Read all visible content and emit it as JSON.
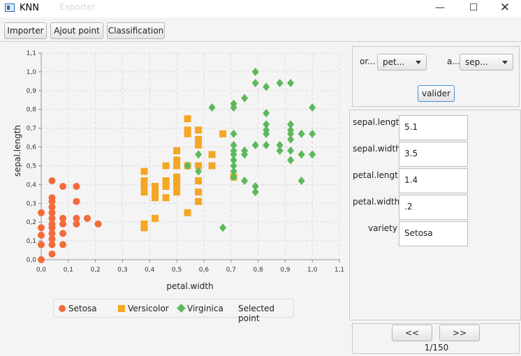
{
  "window": {
    "title": "KNN",
    "ghost_toolbar_label": "Exporter"
  },
  "toolbar": {
    "import_label": "Importer",
    "add_point_label": "Ajout point",
    "classification_label": "Classification"
  },
  "controls": {
    "x_axis_label": "or...",
    "x_axis_value": "pet...",
    "y_axis_label": "a...",
    "y_axis_value": "sep...",
    "validate_label": "valider"
  },
  "form": {
    "sepal_length": {
      "label": "sepal.length",
      "value": "5.1"
    },
    "sepal_width": {
      "label": "sepal.width",
      "value": "3.5"
    },
    "petal_length": {
      "label": "petal.length",
      "value": "1.4"
    },
    "petal_width": {
      "label": "petal.width",
      "value": ".2"
    },
    "variety": {
      "label": "variety",
      "value": "Setosa"
    }
  },
  "pager": {
    "prev_label": "<<",
    "next_label": ">>",
    "position": "1/150"
  },
  "colors": {
    "setosa": "#f26b3a",
    "versicolor": "#f5a623",
    "virginica": "#5cb85c"
  },
  "chart_data": {
    "type": "scatter",
    "xlabel": "petal.width",
    "ylabel": "sepal.length",
    "xlim": [
      0,
      1.1
    ],
    "ylim": [
      0,
      1.1
    ],
    "ticks": [
      "0,0",
      "0,1",
      "0,2",
      "0,3",
      "0,4",
      "0,5",
      "0,6",
      "0,7",
      "0,8",
      "0,9",
      "1,0",
      "1,1"
    ],
    "grid": true,
    "legend_position": "bottom",
    "legend": [
      {
        "name": "Setosa",
        "shape": "circle"
      },
      {
        "name": "Versicolor",
        "shape": "square"
      },
      {
        "name": "Virginica",
        "shape": "diamond"
      },
      {
        "name": "Selected point",
        "shape": "none"
      }
    ],
    "series": [
      {
        "name": "Setosa",
        "shape": "circle",
        "points": [
          [
            0,
            0.25
          ],
          [
            0,
            0.17
          ],
          [
            0,
            0.13
          ],
          [
            0,
            0.08
          ],
          [
            0,
            0.0
          ],
          [
            0.04,
            0.42
          ],
          [
            0.04,
            0.33
          ],
          [
            0.04,
            0.31
          ],
          [
            0.04,
            0.28
          ],
          [
            0.04,
            0.25
          ],
          [
            0.04,
            0.22
          ],
          [
            0.04,
            0.19
          ],
          [
            0.04,
            0.17
          ],
          [
            0.04,
            0.14
          ],
          [
            0.04,
            0.11
          ],
          [
            0.04,
            0.08
          ],
          [
            0.04,
            0.03
          ],
          [
            0.08,
            0.39
          ],
          [
            0.08,
            0.22
          ],
          [
            0.08,
            0.19
          ],
          [
            0.08,
            0.14
          ],
          [
            0.08,
            0.08
          ],
          [
            0.13,
            0.39
          ],
          [
            0.13,
            0.31
          ],
          [
            0.13,
            0.22
          ],
          [
            0.13,
            0.19
          ],
          [
            0.17,
            0.22
          ],
          [
            0.21,
            0.19
          ]
        ]
      },
      {
        "name": "Versicolor",
        "shape": "square",
        "points": [
          [
            0.38,
            0.47
          ],
          [
            0.38,
            0.42
          ],
          [
            0.38,
            0.39
          ],
          [
            0.38,
            0.36
          ],
          [
            0.38,
            0.19
          ],
          [
            0.38,
            0.17
          ],
          [
            0.42,
            0.39
          ],
          [
            0.42,
            0.36
          ],
          [
            0.42,
            0.33
          ],
          [
            0.42,
            0.22
          ],
          [
            0.46,
            0.5
          ],
          [
            0.46,
            0.42
          ],
          [
            0.46,
            0.39
          ],
          [
            0.46,
            0.33
          ],
          [
            0.5,
            0.58
          ],
          [
            0.5,
            0.53
          ],
          [
            0.5,
            0.5
          ],
          [
            0.5,
            0.44
          ],
          [
            0.5,
            0.42
          ],
          [
            0.5,
            0.39
          ],
          [
            0.5,
            0.36
          ],
          [
            0.54,
            0.75
          ],
          [
            0.54,
            0.69
          ],
          [
            0.54,
            0.67
          ],
          [
            0.54,
            0.5
          ],
          [
            0.54,
            0.25
          ],
          [
            0.58,
            0.69
          ],
          [
            0.58,
            0.64
          ],
          [
            0.58,
            0.61
          ],
          [
            0.58,
            0.5
          ],
          [
            0.58,
            0.42
          ],
          [
            0.58,
            0.36
          ],
          [
            0.58,
            0.31
          ],
          [
            0.63,
            0.56
          ],
          [
            0.63,
            0.5
          ],
          [
            0.67,
            0.67
          ],
          [
            0.71,
            0.44
          ]
        ]
      },
      {
        "name": "Virginica",
        "shape": "diamond",
        "points": [
          [
            0.54,
            0.5
          ],
          [
            0.58,
            0.56
          ],
          [
            0.58,
            0.47
          ],
          [
            0.63,
            0.81
          ],
          [
            0.67,
            0.17
          ],
          [
            0.71,
            0.83
          ],
          [
            0.71,
            0.81
          ],
          [
            0.71,
            0.67
          ],
          [
            0.71,
            0.61
          ],
          [
            0.71,
            0.58
          ],
          [
            0.71,
            0.56
          ],
          [
            0.71,
            0.53
          ],
          [
            0.71,
            0.5
          ],
          [
            0.71,
            0.47
          ],
          [
            0.71,
            0.44
          ],
          [
            0.75,
            0.86
          ],
          [
            0.75,
            0.58
          ],
          [
            0.75,
            0.56
          ],
          [
            0.75,
            0.42
          ],
          [
            0.79,
            1.0
          ],
          [
            0.79,
            0.94
          ],
          [
            0.79,
            0.61
          ],
          [
            0.79,
            0.39
          ],
          [
            0.79,
            0.36
          ],
          [
            0.83,
            0.92
          ],
          [
            0.83,
            0.78
          ],
          [
            0.83,
            0.72
          ],
          [
            0.83,
            0.69
          ],
          [
            0.83,
            0.67
          ],
          [
            0.83,
            0.61
          ],
          [
            0.88,
            0.94
          ],
          [
            0.88,
            0.61
          ],
          [
            0.88,
            0.58
          ],
          [
            0.92,
            0.94
          ],
          [
            0.92,
            0.72
          ],
          [
            0.92,
            0.69
          ],
          [
            0.92,
            0.67
          ],
          [
            0.92,
            0.64
          ],
          [
            0.92,
            0.58
          ],
          [
            0.92,
            0.53
          ],
          [
            0.96,
            0.67
          ],
          [
            0.96,
            0.56
          ],
          [
            0.96,
            0.42
          ],
          [
            1.0,
            0.81
          ],
          [
            1.0,
            0.67
          ],
          [
            1.0,
            0.56
          ]
        ]
      }
    ]
  }
}
